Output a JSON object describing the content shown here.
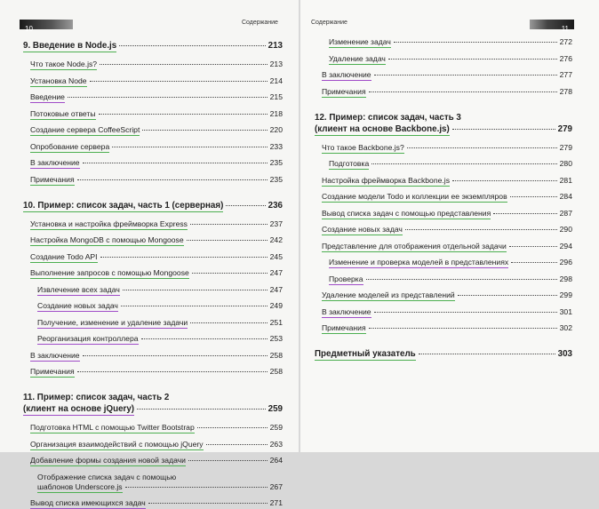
{
  "pages": [
    {
      "number": 10,
      "header": "Содержание",
      "items": [
        {
          "kind": "chapter",
          "lines": [
            "9. Введение в Node.js"
          ],
          "page": 213,
          "underline": "#4caf50"
        },
        {
          "kind": "entry",
          "level": 1,
          "lines": [
            "Что такое Node.js?"
          ],
          "page": 213,
          "underline": "#4caf50"
        },
        {
          "kind": "entry",
          "level": 1,
          "lines": [
            "Установка Node"
          ],
          "page": 214,
          "underline": "#4caf50"
        },
        {
          "kind": "entry",
          "level": 1,
          "lines": [
            "Введение"
          ],
          "page": 215,
          "underline": "#a04cc8"
        },
        {
          "kind": "entry",
          "level": 1,
          "lines": [
            "Потоковые ответы"
          ],
          "page": 218,
          "underline": "#4caf50"
        },
        {
          "kind": "entry",
          "level": 1,
          "lines": [
            "Создание сервера CoffeeScript"
          ],
          "page": 220,
          "underline": "#4caf50"
        },
        {
          "kind": "entry",
          "level": 1,
          "lines": [
            "Опробование сервера"
          ],
          "page": 233,
          "underline": "#4caf50"
        },
        {
          "kind": "entry",
          "level": 1,
          "lines": [
            "В заключение"
          ],
          "page": 235,
          "underline": "#a04cc8"
        },
        {
          "kind": "entry",
          "level": 1,
          "lines": [
            "Примечания"
          ],
          "page": 235,
          "underline": "#4caf50"
        },
        {
          "kind": "chapter",
          "lines": [
            "10. Пример: список задач, часть 1 (серверная)"
          ],
          "page": 236,
          "underline": "#4caf50"
        },
        {
          "kind": "entry",
          "level": 1,
          "lines": [
            "Установка и настройка фреймворка Express"
          ],
          "page": 237,
          "underline": "#4caf50"
        },
        {
          "kind": "entry",
          "level": 1,
          "lines": [
            "Настройка MongoDB с помощью Mongoose"
          ],
          "page": 242,
          "underline": "#4caf50"
        },
        {
          "kind": "entry",
          "level": 1,
          "lines": [
            "Создание Todo API"
          ],
          "page": 245,
          "underline": "#4caf50"
        },
        {
          "kind": "entry",
          "level": 1,
          "lines": [
            "Выполнение запросов с помощью Mongoose"
          ],
          "page": 247,
          "underline": "#4caf50"
        },
        {
          "kind": "entry",
          "level": 2,
          "lines": [
            "Извлечение всех задач"
          ],
          "page": 247,
          "underline": "#a04cc8"
        },
        {
          "kind": "entry",
          "level": 2,
          "lines": [
            "Создание новых задач"
          ],
          "page": 249,
          "underline": "#a04cc8"
        },
        {
          "kind": "entry",
          "level": 2,
          "lines": [
            "Получение, изменение и удаление задачи"
          ],
          "page": 251,
          "underline": "#a04cc8"
        },
        {
          "kind": "entry",
          "level": 2,
          "lines": [
            "Реорганизация контроллера"
          ],
          "page": 253,
          "underline": "#a04cc8"
        },
        {
          "kind": "entry",
          "level": 1,
          "lines": [
            "В заключение"
          ],
          "page": 258,
          "underline": "#a04cc8"
        },
        {
          "kind": "entry",
          "level": 1,
          "lines": [
            "Примечания"
          ],
          "page": 258,
          "underline": "#4caf50"
        },
        {
          "kind": "chapter",
          "lines": [
            "11. Пример: список задач, часть 2",
            "(клиент на основе jQuery)"
          ],
          "page": 259,
          "underline": "#a04cc8"
        },
        {
          "kind": "entry",
          "level": 1,
          "lines": [
            "Подготовка HTML с помощью Twitter Bootstrap"
          ],
          "page": 259,
          "underline": "#4caf50"
        },
        {
          "kind": "entry",
          "level": 1,
          "lines": [
            "Организация взаимодействий с помощью jQuery"
          ],
          "page": 263,
          "underline": "#4caf50"
        },
        {
          "kind": "entry",
          "level": 1,
          "lines": [
            "Добавление формы создания новой задачи"
          ],
          "page": 264,
          "underline": "#4caf50"
        },
        {
          "kind": "entry",
          "level": 2,
          "lines": [
            "Отображение списка задач с помощью",
            "шаблонов Underscore.js"
          ],
          "page": 267,
          "underline": "#4caf50"
        },
        {
          "kind": "entry",
          "level": 1,
          "lines": [
            "Вывод списка имеющихся задач"
          ],
          "page": 271,
          "underline": "#a04cc8"
        }
      ]
    },
    {
      "number": 11,
      "header": "Содержание",
      "items": [
        {
          "kind": "entry",
          "level": 2,
          "lines": [
            "Изменение задач"
          ],
          "page": 272,
          "underline": "#4caf50"
        },
        {
          "kind": "entry",
          "level": 2,
          "lines": [
            "Удаление задач"
          ],
          "page": 276,
          "underline": "#4caf50"
        },
        {
          "kind": "entry",
          "level": 1,
          "lines": [
            "В заключение"
          ],
          "page": 277,
          "underline": "#a04cc8"
        },
        {
          "kind": "entry",
          "level": 1,
          "lines": [
            "Примечания"
          ],
          "page": 278,
          "underline": "#4caf50"
        },
        {
          "kind": "chapter",
          "lines": [
            "12. Пример: список задач, часть 3",
            "(клиент на основе Backbone.js)"
          ],
          "page": 279,
          "underline": "#4caf50"
        },
        {
          "kind": "entry",
          "level": 1,
          "lines": [
            "Что такое Backbone.js?"
          ],
          "page": 279,
          "underline": "#4caf50"
        },
        {
          "kind": "entry",
          "level": 2,
          "lines": [
            "Подготовка"
          ],
          "page": 280,
          "underline": "#4caf50"
        },
        {
          "kind": "entry",
          "level": 1,
          "lines": [
            "Настройка фреймворка Backbone.js"
          ],
          "page": 281,
          "underline": "#4caf50"
        },
        {
          "kind": "entry",
          "level": 1,
          "lines": [
            "Создание модели Todo и коллекции ее экземпляров"
          ],
          "page": 284,
          "underline": "#4caf50"
        },
        {
          "kind": "entry",
          "level": 1,
          "lines": [
            "Вывод списка задач с помощью представления"
          ],
          "page": 287,
          "underline": "#4caf50"
        },
        {
          "kind": "entry",
          "level": 1,
          "lines": [
            "Создание новых задач"
          ],
          "page": 290,
          "underline": "#4caf50"
        },
        {
          "kind": "entry",
          "level": 1,
          "lines": [
            "Представление для отображения отдельной задачи"
          ],
          "page": 294,
          "underline": "#4caf50"
        },
        {
          "kind": "entry",
          "level": 2,
          "lines": [
            "Изменение и проверка моделей в представлениях"
          ],
          "page": 296,
          "underline": "#a04cc8"
        },
        {
          "kind": "entry",
          "level": 2,
          "lines": [
            "Проверка"
          ],
          "page": 298,
          "underline": "#a04cc8"
        },
        {
          "kind": "entry",
          "level": 1,
          "lines": [
            "Удаление моделей из представлений"
          ],
          "page": 299,
          "underline": "#4caf50"
        },
        {
          "kind": "entry",
          "level": 1,
          "lines": [
            "В заключение"
          ],
          "page": 301,
          "underline": "#a04cc8"
        },
        {
          "kind": "entry",
          "level": 1,
          "lines": [
            "Примечания"
          ],
          "page": 302,
          "underline": "#4caf50"
        },
        {
          "kind": "chapter",
          "lines": [
            "Предметный указатель"
          ],
          "page": 303,
          "underline": "#4caf50"
        }
      ]
    }
  ]
}
